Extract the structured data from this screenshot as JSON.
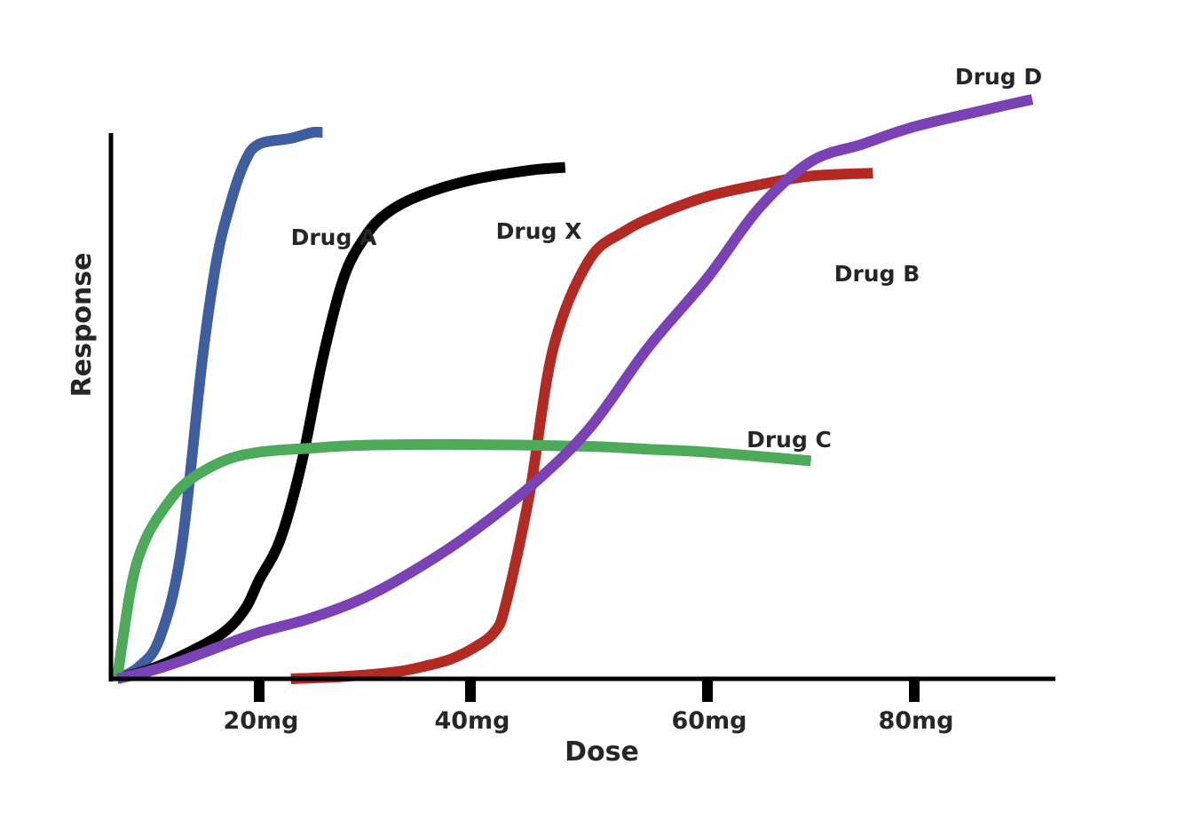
{
  "chart_data": {
    "type": "line",
    "title": "",
    "xlabel": "Dose",
    "ylabel": "Response",
    "xlim": [
      0,
      90
    ],
    "ylim": [
      0,
      100
    ],
    "x_ticks": [
      {
        "value": 20,
        "label": "20mg"
      },
      {
        "value": 40,
        "label": "40mg"
      },
      {
        "value": 60,
        "label": "60mg"
      },
      {
        "value": 80,
        "label": "80mg"
      }
    ],
    "grid": false,
    "legend": "none (series labeled directly on curves)",
    "series": [
      {
        "name": "Drug A",
        "color": "#3e5e9f",
        "x": [
          0,
          3,
          6,
          9,
          12,
          14,
          16,
          18,
          20,
          23,
          25,
          26
        ],
        "y": [
          0,
          2,
          7,
          22,
          55,
          72,
          82,
          89,
          92,
          93,
          94,
          94
        ]
      },
      {
        "name": "Drug X",
        "color": "#000000",
        "x": [
          0,
          5,
          10,
          15,
          18,
          20,
          22,
          24,
          26,
          28,
          30,
          32,
          35,
          40,
          45,
          48
        ],
        "y": [
          0,
          1.8,
          4.5,
          8,
          12,
          17,
          24,
          37,
          55,
          69,
          76,
          80,
          83,
          85.8,
          87.5,
          88
        ]
      },
      {
        "name": "Drug B",
        "color": "#b32a22",
        "x": [
          23,
          28,
          33,
          36,
          38,
          40,
          42,
          43,
          45,
          47,
          50,
          53,
          56,
          60,
          65,
          70,
          76
        ],
        "y": [
          0,
          0.4,
          1.2,
          2.3,
          3.3,
          5,
          8,
          13,
          32,
          57,
          72,
          77,
          80,
          83,
          85,
          86.5,
          87
        ]
      },
      {
        "name": "Drug C",
        "color": "#4caa5a",
        "x": [
          0,
          2,
          4,
          7,
          10,
          15,
          20,
          25,
          30,
          40,
          50,
          55,
          60,
          70
        ],
        "y": [
          0,
          16,
          24,
          30,
          34,
          37.5,
          39,
          39.7,
          40.2,
          40.3,
          40,
          39.5,
          39,
          37.5
        ]
      },
      {
        "name": "Drug D",
        "color": "#7a42b4",
        "x": [
          0,
          5,
          10,
          15,
          20,
          25,
          30,
          35,
          40,
          45,
          50,
          55,
          60,
          65,
          70,
          75,
          80,
          85,
          88
        ],
        "y": [
          0,
          1.5,
          3.5,
          5.8,
          8,
          10.5,
          14,
          19,
          25,
          33,
          43,
          57,
          69,
          81,
          89,
          92,
          95,
          98,
          99.7
        ]
      }
    ]
  }
}
